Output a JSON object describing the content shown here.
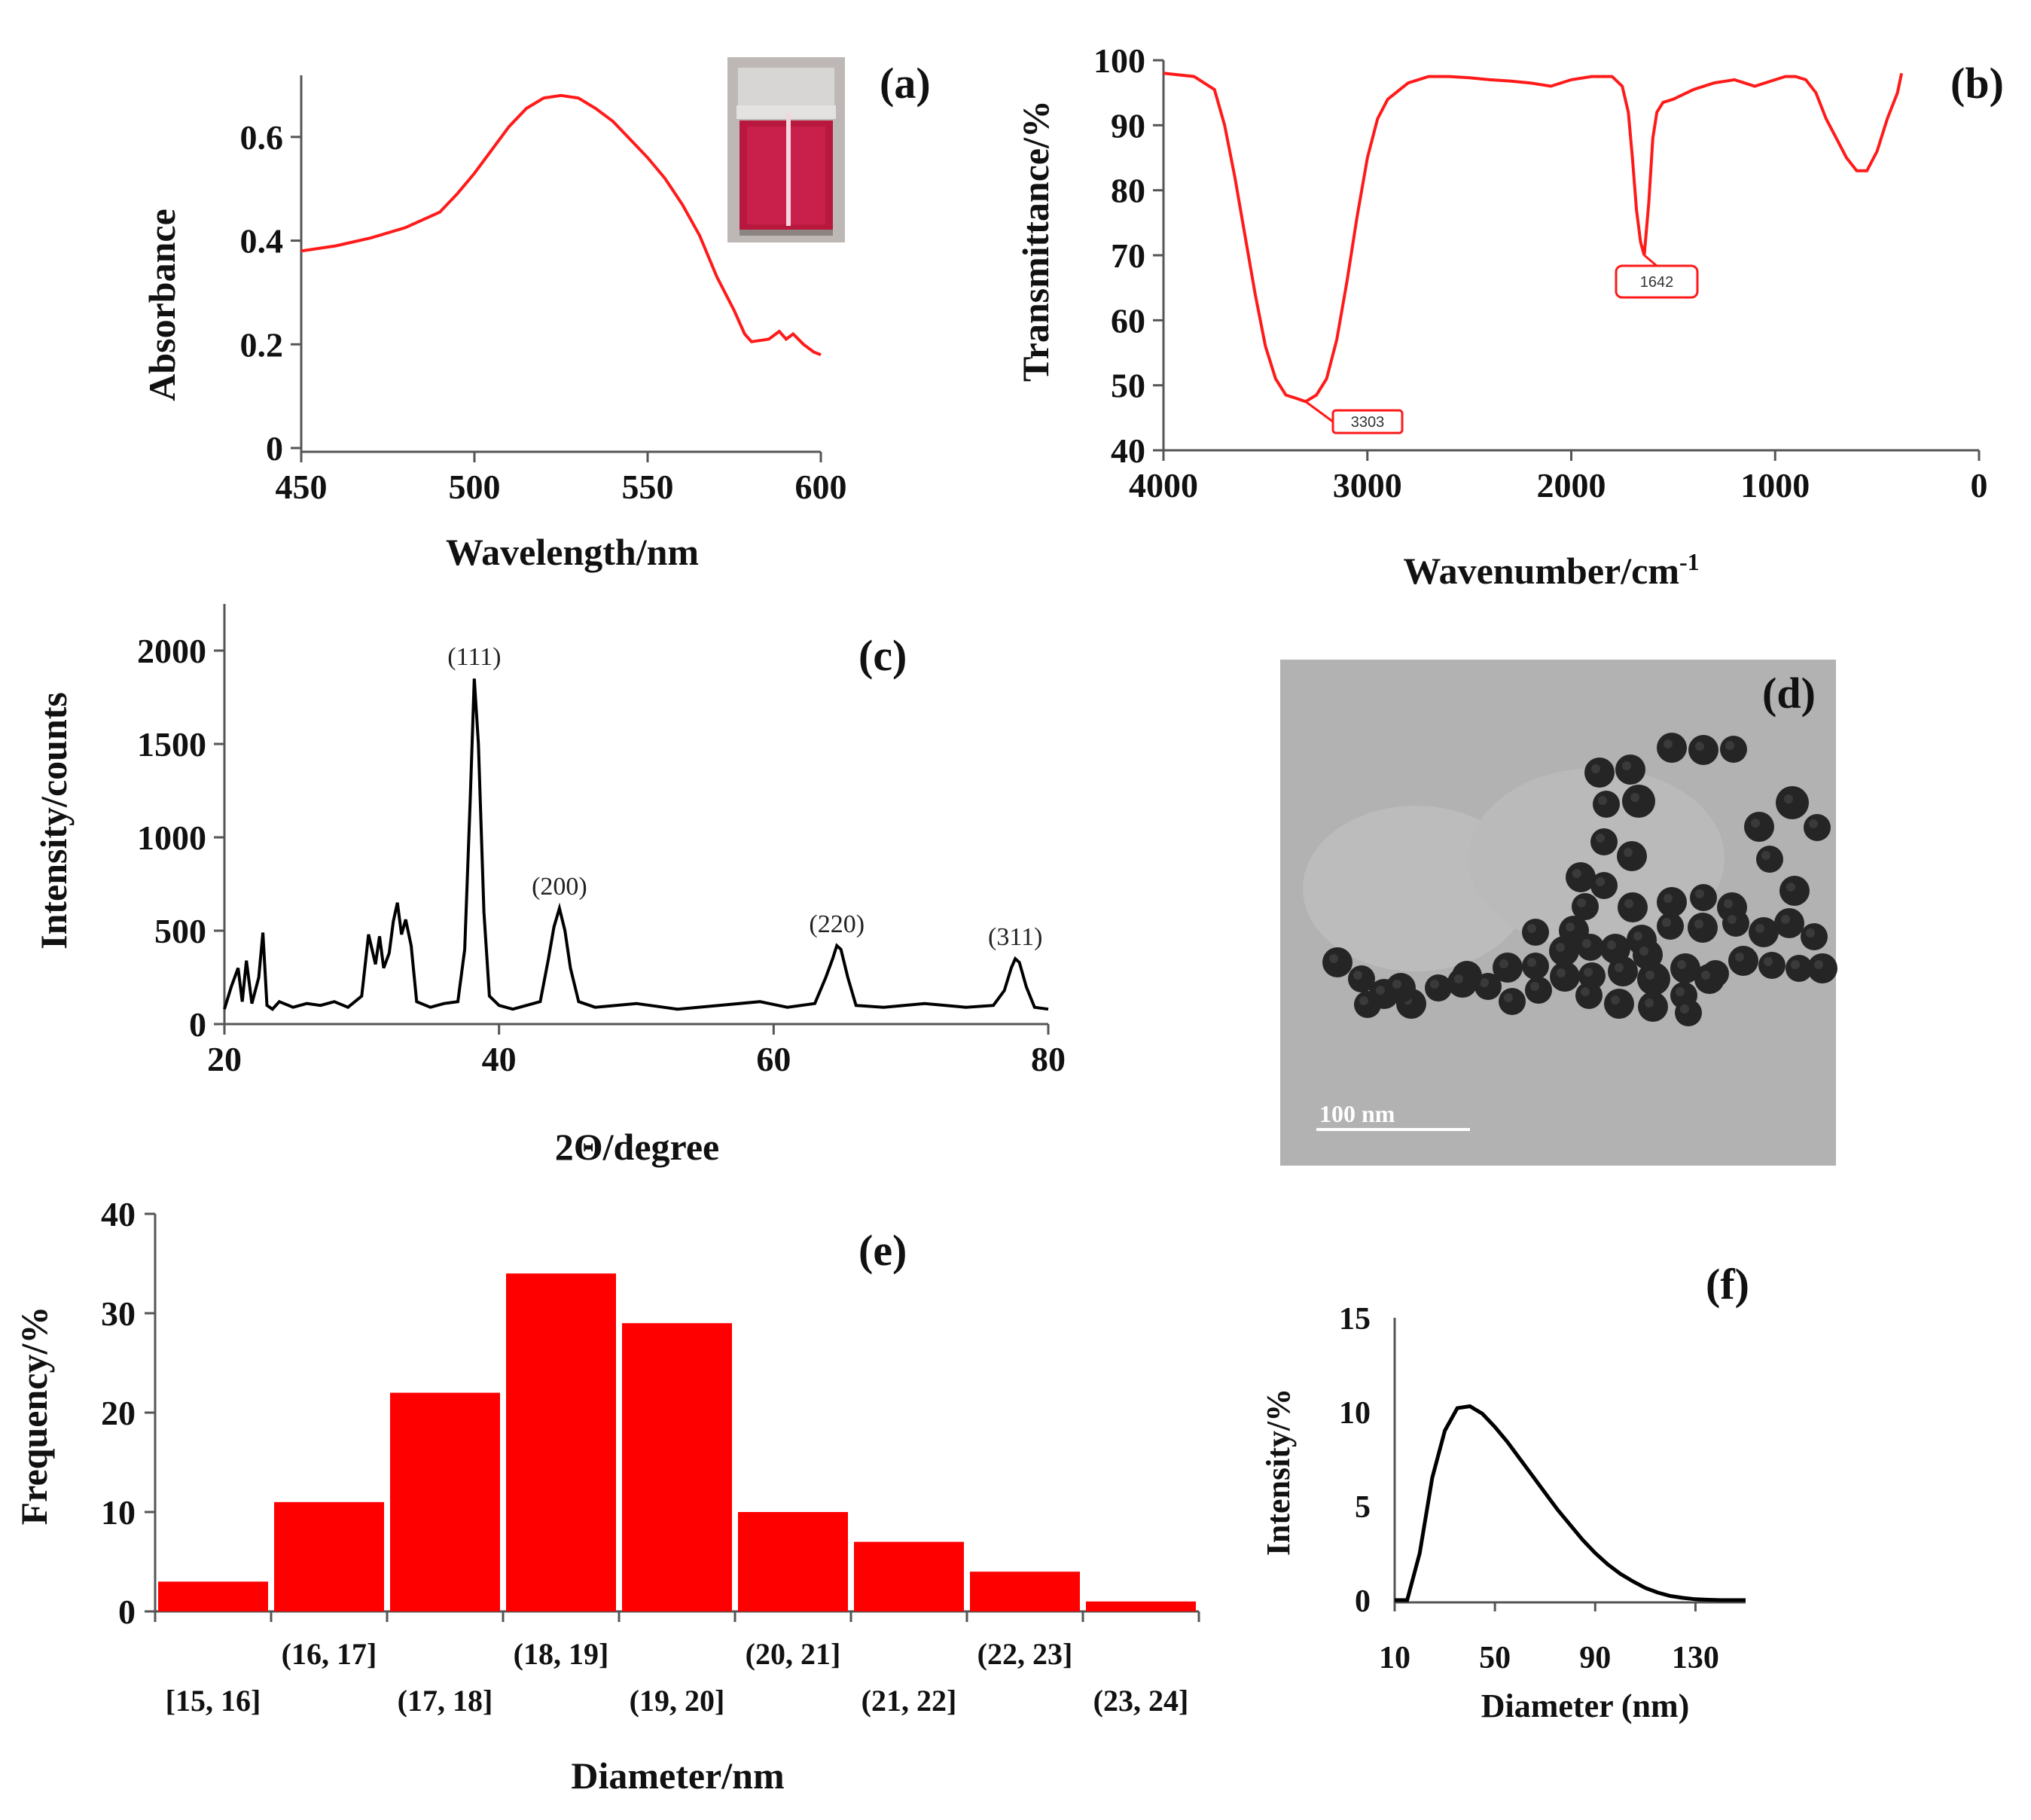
{
  "chart_data": [
    {
      "panel": "(a)",
      "type": "line",
      "xlabel": "Wavelength/nm",
      "ylabel": "Absorbance",
      "xlim": [
        450,
        600
      ],
      "ylim": [
        0,
        0.7
      ],
      "xticks": [
        "450",
        "500",
        "550",
        "600"
      ],
      "yticks": [
        "0",
        "0.2",
        "0.4",
        "0.6"
      ],
      "inset": "photo of red colloidal gold solution in vial",
      "color": "#ff1a1a",
      "x": [
        450,
        460,
        470,
        480,
        490,
        495,
        500,
        505,
        510,
        515,
        520,
        525,
        530,
        535,
        540,
        545,
        550,
        555,
        560,
        565,
        570,
        575,
        578,
        580,
        585,
        588,
        590,
        592,
        595,
        598,
        600
      ],
      "y": [
        0.38,
        0.39,
        0.405,
        0.425,
        0.455,
        0.49,
        0.53,
        0.575,
        0.62,
        0.655,
        0.675,
        0.68,
        0.675,
        0.655,
        0.63,
        0.595,
        0.56,
        0.52,
        0.47,
        0.41,
        0.33,
        0.265,
        0.22,
        0.205,
        0.21,
        0.225,
        0.21,
        0.22,
        0.2,
        0.185,
        0.18
      ]
    },
    {
      "panel": "(b)",
      "type": "line",
      "xlabel": "Wavenumber/cm-1",
      "xlabel_main": "Wavenumber/cm",
      "xlabel_sup": "-1",
      "ylabel": "Transmittance/%",
      "xlim": [
        4000,
        0
      ],
      "ylim": [
        40,
        100
      ],
      "xticks": [
        "4000",
        "3000",
        "2000",
        "1000",
        "0"
      ],
      "yticks": [
        "40",
        "50",
        "60",
        "70",
        "80",
        "90",
        "100"
      ],
      "annotations": [
        "3303",
        "1642"
      ],
      "color": "#ff1a1a",
      "x": [
        4000,
        3850,
        3750,
        3700,
        3650,
        3600,
        3550,
        3500,
        3450,
        3400,
        3350,
        3303,
        3250,
        3200,
        3150,
        3100,
        3050,
        3000,
        2950,
        2900,
        2800,
        2700,
        2600,
        2500,
        2400,
        2300,
        2200,
        2100,
        2000,
        1900,
        1800,
        1750,
        1720,
        1700,
        1680,
        1660,
        1642,
        1620,
        1600,
        1580,
        1550,
        1500,
        1400,
        1300,
        1200,
        1150,
        1100,
        1000,
        950,
        900,
        850,
        800,
        750,
        700,
        650,
        600,
        550,
        500,
        450,
        400,
        380
      ],
      "y": [
        98,
        97.5,
        95.5,
        90,
        82,
        73,
        64,
        56,
        51,
        48.5,
        48,
        47.5,
        48.5,
        51,
        57,
        66,
        76,
        85,
        91,
        94,
        96.5,
        97.5,
        97.5,
        97.3,
        97,
        96.8,
        96.5,
        96,
        97,
        97.5,
        97.5,
        96,
        92,
        85,
        77,
        72,
        70,
        78,
        88,
        92,
        93.5,
        94,
        95.5,
        96.5,
        97,
        96.5,
        96,
        97,
        97.5,
        97.5,
        97,
        95,
        91,
        88,
        85,
        83,
        83,
        86,
        91,
        95,
        98
      ]
    },
    {
      "panel": "(c)",
      "type": "line",
      "xlabel": "2Θ/degree",
      "ylabel": "Intensity/counts",
      "xlim": [
        20,
        80
      ],
      "ylim": [
        0,
        2250
      ],
      "xticks": [
        "20",
        "40",
        "60",
        "80"
      ],
      "yticks": [
        "0",
        "500",
        "1000",
        "1500",
        "2000"
      ],
      "peak_labels": [
        {
          "label": "(111)",
          "x": 38.2,
          "y": 1850
        },
        {
          "label": "(200)",
          "x": 44.4,
          "y": 620
        },
        {
          "label": "(220)",
          "x": 64.6,
          "y": 420
        },
        {
          "label": "(311)",
          "x": 77.6,
          "y": 350
        }
      ],
      "color": "#000000",
      "x": [
        20,
        20.5,
        21,
        21.3,
        21.6,
        22,
        22.5,
        22.8,
        23.1,
        23.5,
        24,
        25,
        26,
        27,
        28,
        29,
        30,
        30.5,
        31,
        31.3,
        31.6,
        32,
        32.3,
        32.6,
        32.9,
        33.2,
        33.6,
        34,
        35,
        36,
        37,
        37.5,
        37.9,
        38.2,
        38.5,
        38.9,
        39.3,
        40,
        41,
        42,
        43,
        43.6,
        44,
        44.4,
        44.8,
        45.2,
        45.8,
        47,
        50,
        53,
        56,
        59,
        61,
        63,
        63.8,
        64.3,
        64.6,
        64.9,
        65.4,
        66,
        68,
        71,
        74,
        76,
        76.8,
        77.3,
        77.6,
        77.9,
        78.4,
        79,
        80
      ],
      "y": [
        80,
        200,
        300,
        120,
        340,
        110,
        250,
        490,
        100,
        80,
        120,
        90,
        110,
        100,
        120,
        90,
        150,
        480,
        320,
        470,
        300,
        380,
        550,
        650,
        480,
        560,
        420,
        120,
        90,
        110,
        120,
        400,
        1200,
        1850,
        1500,
        600,
        150,
        100,
        80,
        100,
        120,
        350,
        520,
        620,
        500,
        300,
        120,
        90,
        110,
        80,
        100,
        120,
        90,
        110,
        250,
        350,
        420,
        400,
        250,
        100,
        90,
        110,
        90,
        100,
        180,
        300,
        350,
        330,
        200,
        90,
        80
      ]
    },
    {
      "panel": "(d)",
      "type": "image",
      "description": "TEM micrograph of gold nanoparticles",
      "scale_bar": "100 nm"
    },
    {
      "panel": "(e)",
      "type": "bar",
      "xlabel": "Diameter/nm",
      "ylabel": "Frequency/%",
      "ylim": [
        0,
        40
      ],
      "yticks": [
        "0",
        "10",
        "20",
        "30",
        "40"
      ],
      "categories": [
        "[15, 16]",
        "(16, 17]",
        "(17, 18]",
        "(18, 19]",
        "(19, 20]",
        "(20, 21]",
        "(21, 22]",
        "(22, 23]",
        "(23, 24]"
      ],
      "values": [
        3,
        11,
        22,
        34,
        29,
        10,
        7,
        4,
        1
      ],
      "color": "#ff0000"
    },
    {
      "panel": "(f)",
      "type": "line",
      "xlabel": "Diameter (nm)",
      "ylabel": "Intensity/%",
      "xlim": [
        10,
        150
      ],
      "ylim": [
        0,
        15
      ],
      "xticks": [
        "10",
        "50",
        "90",
        "130"
      ],
      "yticks": [
        "0",
        "5",
        "10",
        "15"
      ],
      "color": "#000000",
      "x": [
        10,
        15,
        20,
        25,
        30,
        35,
        40,
        45,
        50,
        55,
        60,
        65,
        70,
        75,
        80,
        85,
        90,
        95,
        100,
        105,
        110,
        115,
        120,
        125,
        130,
        135,
        140,
        145,
        150
      ],
      "y": [
        0,
        0,
        2.5,
        6.5,
        9,
        10.2,
        10.3,
        9.9,
        9.2,
        8.4,
        7.5,
        6.6,
        5.7,
        4.8,
        4.0,
        3.2,
        2.5,
        1.9,
        1.4,
        1.0,
        0.65,
        0.4,
        0.22,
        0.12,
        0.05,
        0.02,
        0,
        0,
        0
      ]
    }
  ]
}
